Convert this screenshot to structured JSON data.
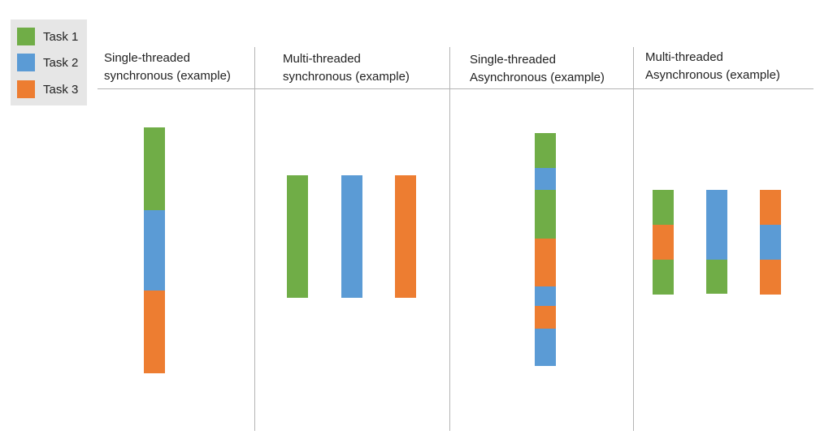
{
  "colors": {
    "task1": "#70ad47",
    "task2": "#5b9bd5",
    "task3": "#ed7d31"
  },
  "legend": [
    {
      "label": "Task 1",
      "task": "task1"
    },
    {
      "label": "Task 2",
      "task": "task2"
    },
    {
      "label": "Task 3",
      "task": "task3"
    }
  ],
  "columns": [
    {
      "title_line1": "Single-threaded",
      "title_line2": "synchronous (example)",
      "threads": [
        [
          "task1",
          "task2",
          "task3"
        ]
      ]
    },
    {
      "title_line1": "Multi-threaded",
      "title_line2": "synchronous (example)",
      "threads": [
        [
          "task1"
        ],
        [
          "task2"
        ],
        [
          "task3"
        ]
      ]
    },
    {
      "title_line1": "Single-threaded",
      "title_line2": "Asynchronous (example)",
      "threads": [
        [
          "task1",
          "task2",
          "task1",
          "task3",
          "task2",
          "task3",
          "task2"
        ]
      ]
    },
    {
      "title_line1": "Multi-threaded",
      "title_line2": "Asynchronous (example)",
      "threads": [
        [
          "task1",
          "task3",
          "task1"
        ],
        [
          "task2",
          "task2",
          "task1"
        ],
        [
          "task3",
          "task2",
          "task3"
        ]
      ]
    }
  ]
}
